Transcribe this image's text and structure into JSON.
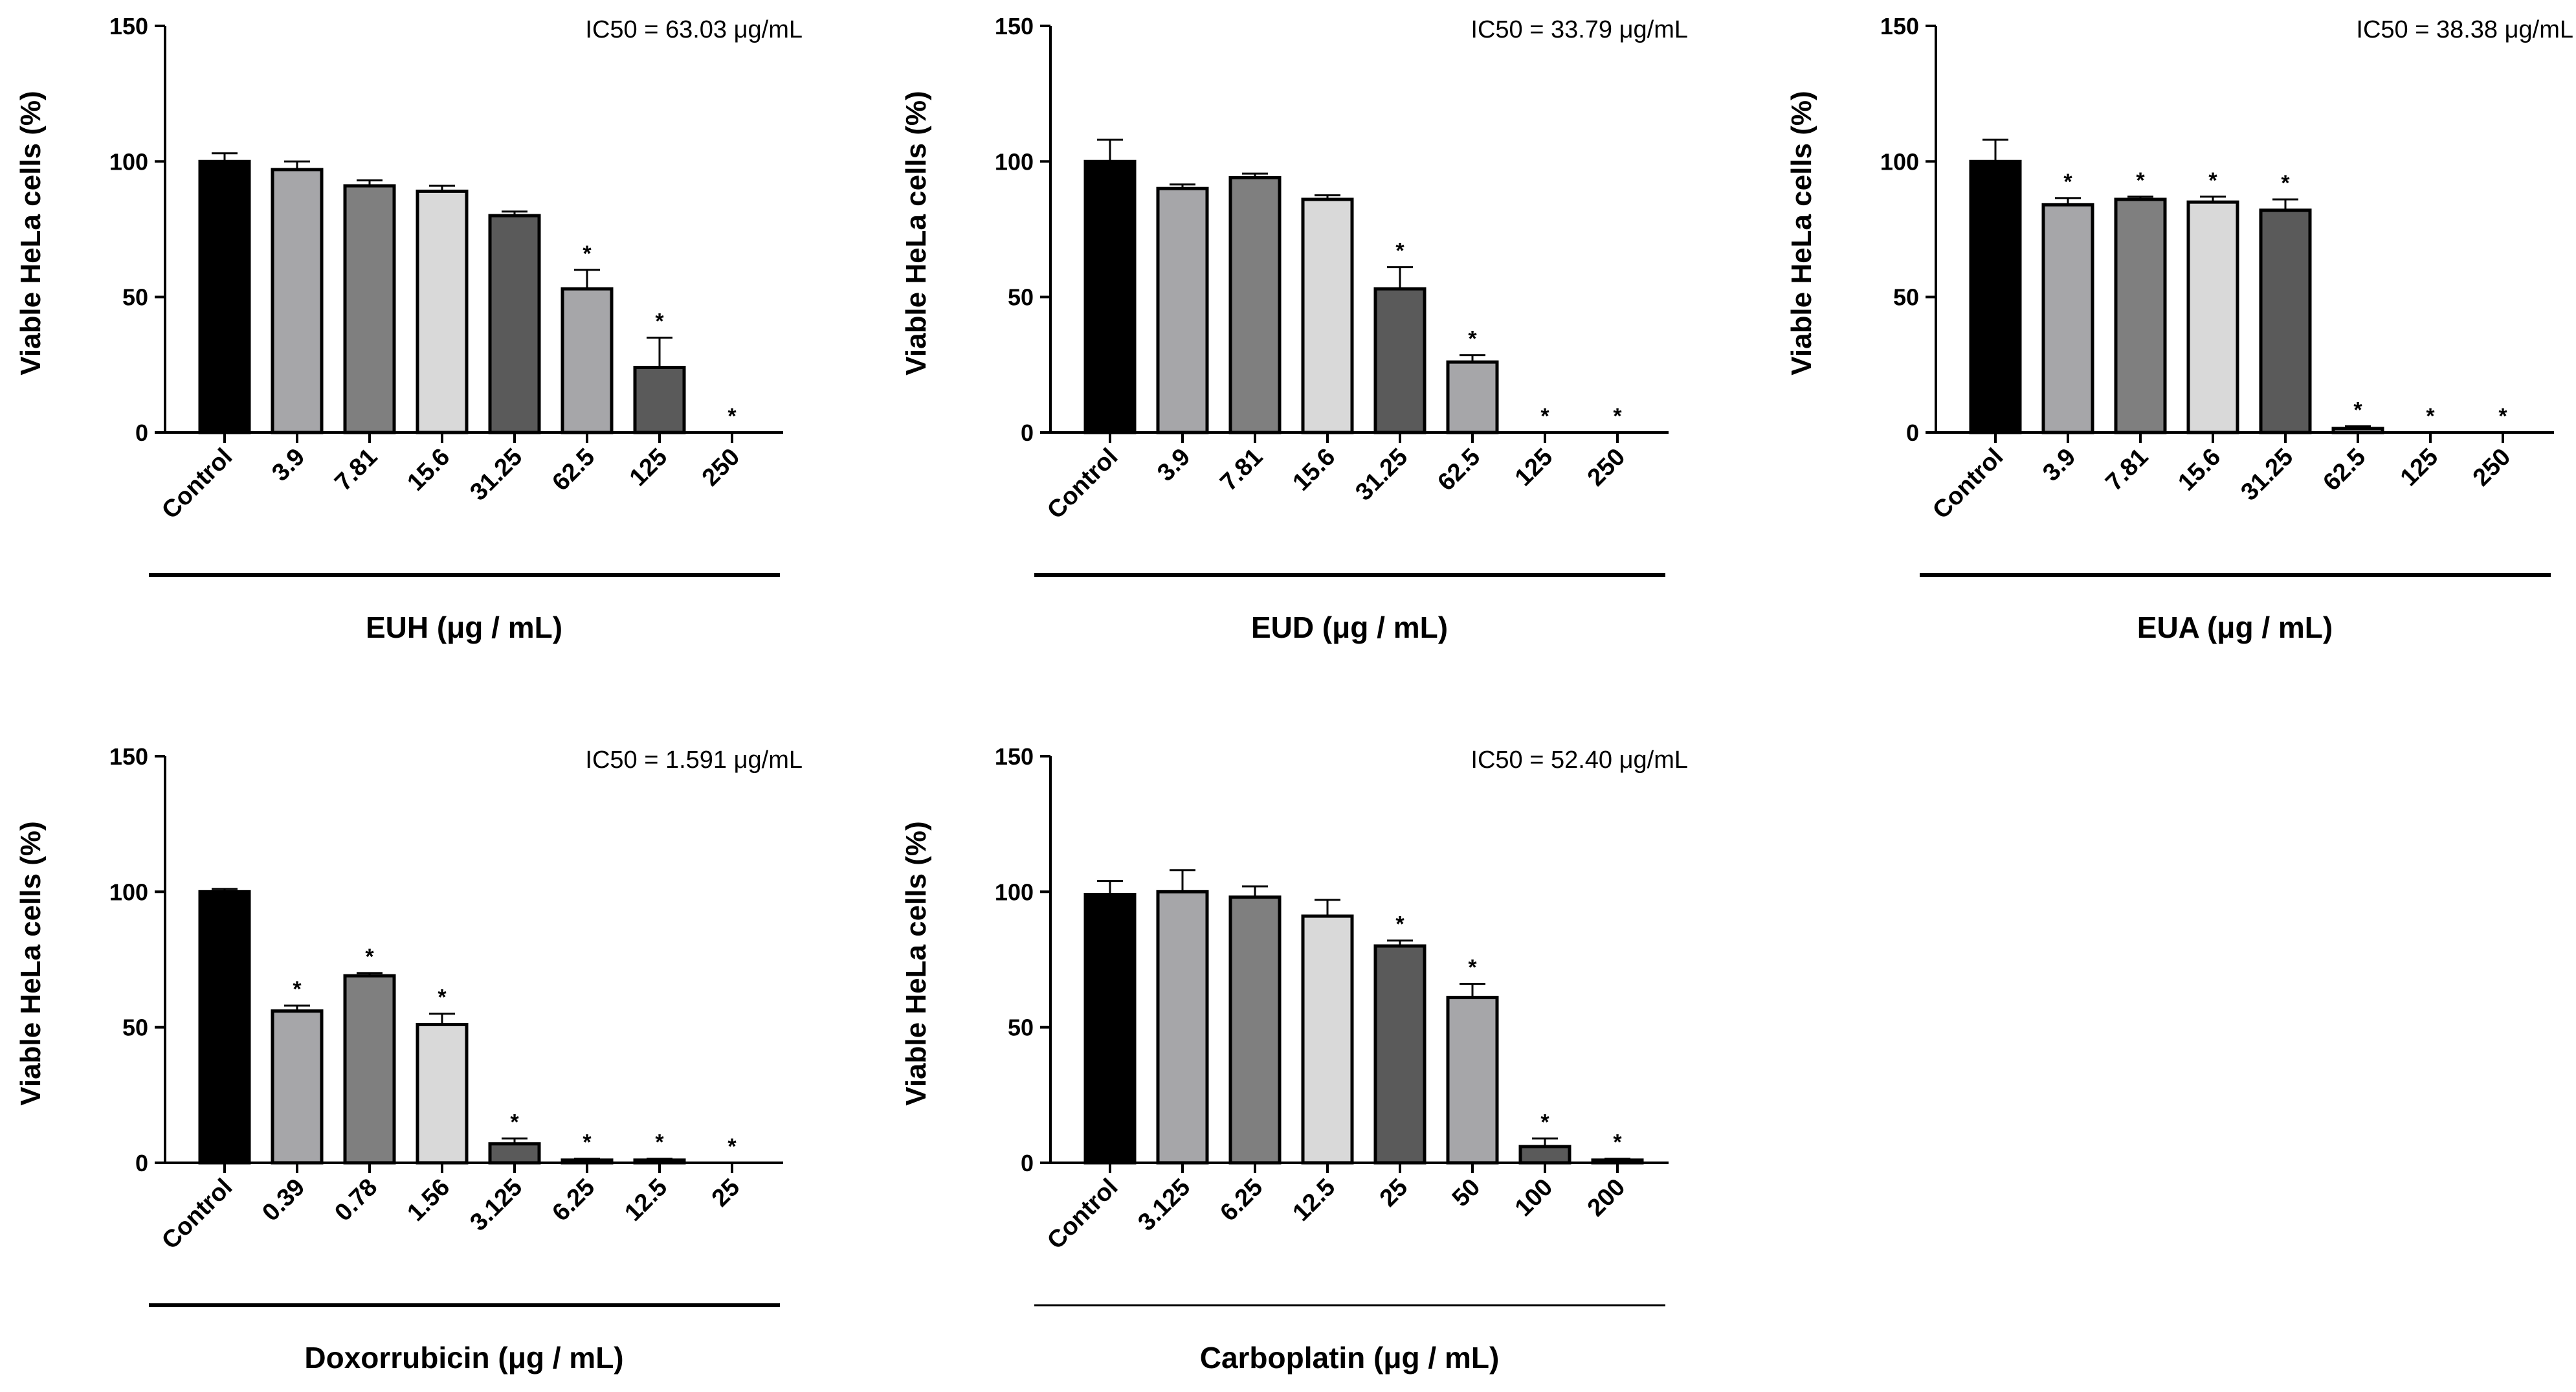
{
  "chart_data": [
    {
      "type": "bar",
      "title": "IC50 = 63.03 μg/mL",
      "ylabel": "Viable HeLa cells (%)",
      "xlabel": "EUH (μg / mL)",
      "ylim": [
        0,
        150
      ],
      "yticks": [
        0,
        50,
        100,
        150
      ],
      "categories": [
        "Control",
        "3.9",
        "7.81",
        "15.6",
        "31.25",
        "62.5",
        "125",
        "250"
      ],
      "values": [
        100,
        97,
        91,
        89,
        80,
        53,
        24,
        0
      ],
      "errors": [
        3,
        3,
        2,
        2,
        1.5,
        7,
        11,
        0
      ],
      "significant": [
        false,
        false,
        false,
        false,
        false,
        true,
        true,
        true
      ],
      "colors": [
        "#000000",
        "#a6a6a9",
        "#7f7f7f",
        "#d9d9d9",
        "#5a5a5a",
        "#a6a6a9",
        "#5a5a5a",
        "#a6a6a9"
      ]
    },
    {
      "type": "bar",
      "title": "IC50 = 33.79 μg/mL",
      "ylabel": "Viable HeLa cells (%)",
      "xlabel": "EUD (μg / mL)",
      "ylim": [
        0,
        150
      ],
      "yticks": [
        0,
        50,
        100,
        150
      ],
      "categories": [
        "Control",
        "3.9",
        "7.81",
        "15.6",
        "31.25",
        "62.5",
        "125",
        "250"
      ],
      "values": [
        100,
        90,
        94,
        86,
        53,
        26,
        0,
        0
      ],
      "errors": [
        8,
        1.5,
        1.5,
        1.5,
        8,
        2.5,
        0,
        0
      ],
      "significant": [
        false,
        false,
        false,
        false,
        true,
        true,
        true,
        true
      ],
      "colors": [
        "#000000",
        "#a6a6a9",
        "#7f7f7f",
        "#d9d9d9",
        "#5a5a5a",
        "#a6a6a9",
        "#5a5a5a",
        "#a6a6a9"
      ]
    },
    {
      "type": "bar",
      "title": "IC50 = 38.38 μg/mL",
      "ylabel": "Viable HeLa cells (%)",
      "xlabel": "EUA (μg / mL)",
      "ylim": [
        0,
        150
      ],
      "yticks": [
        0,
        50,
        100,
        150
      ],
      "categories": [
        "Control",
        "3.9",
        "7.81",
        "15.6",
        "31.25",
        "62.5",
        "125",
        "250"
      ],
      "values": [
        100,
        84,
        86,
        85,
        82,
        1.5,
        0,
        0
      ],
      "errors": [
        8,
        2.5,
        1,
        2,
        4,
        0.8,
        0,
        0
      ],
      "significant": [
        false,
        true,
        true,
        true,
        true,
        true,
        true,
        true
      ],
      "colors": [
        "#000000",
        "#a6a6a9",
        "#7f7f7f",
        "#d9d9d9",
        "#5a5a5a",
        "#a6a6a9",
        "#5a5a5a",
        "#a6a6a9"
      ]
    },
    {
      "type": "bar",
      "title": "IC50 = 1.591 μg/mL",
      "ylabel": "Viable HeLa cells (%)",
      "xlabel": "Doxorrubicin (μg / mL)",
      "ylim": [
        0,
        150
      ],
      "yticks": [
        0,
        50,
        100,
        150
      ],
      "categories": [
        "Control",
        "0.39",
        "0.78",
        "1.56",
        "3.125",
        "6.25",
        "12.5",
        "25"
      ],
      "values": [
        100,
        56,
        69,
        51,
        7,
        1,
        1,
        0
      ],
      "errors": [
        1,
        2,
        1,
        4,
        2,
        0.5,
        0.5,
        0
      ],
      "significant": [
        false,
        true,
        true,
        true,
        true,
        true,
        true,
        true
      ],
      "colors": [
        "#000000",
        "#a6a6a9",
        "#7f7f7f",
        "#d9d9d9",
        "#5a5a5a",
        "#a6a6a9",
        "#5a5a5a",
        "#a6a6a9"
      ]
    },
    {
      "type": "bar",
      "title": "IC50 = 52.40 μg/mL",
      "ylabel": "Viable HeLa cells (%)",
      "xlabel": "Carboplatin (μg / mL)",
      "ylim": [
        0,
        150
      ],
      "yticks": [
        0,
        50,
        100,
        150
      ],
      "categories": [
        "Control",
        "3.125",
        "6.25",
        "12.5",
        "25",
        "50",
        "100",
        "200"
      ],
      "values": [
        99,
        100,
        98,
        91,
        80,
        61,
        6,
        1
      ],
      "errors": [
        5,
        8,
        4,
        6,
        2,
        5,
        3,
        0.5
      ],
      "significant": [
        false,
        false,
        false,
        false,
        true,
        true,
        true,
        true
      ],
      "colors": [
        "#000000",
        "#a6a6a9",
        "#7f7f7f",
        "#d9d9d9",
        "#5a5a5a",
        "#a6a6a9",
        "#5a5a5a",
        "#a6a6a9"
      ]
    }
  ]
}
